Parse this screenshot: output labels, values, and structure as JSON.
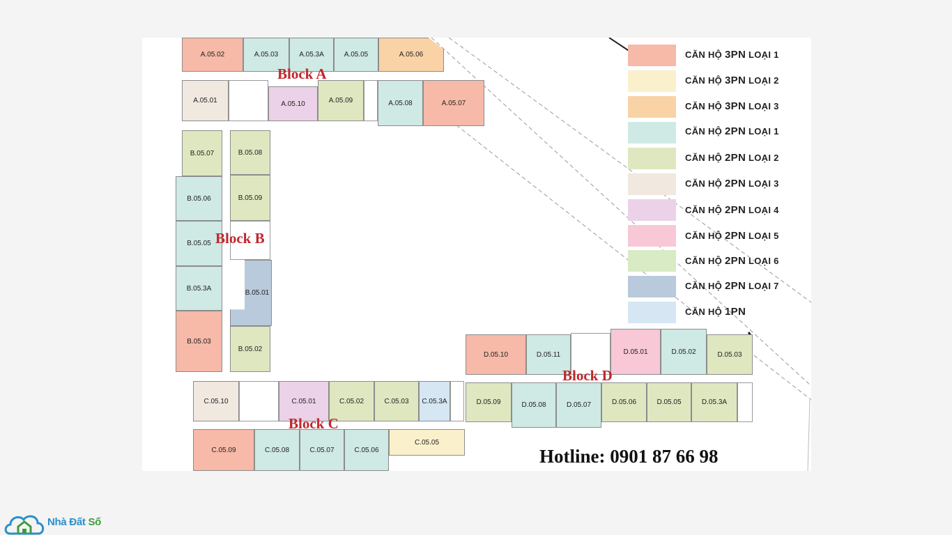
{
  "colors": {
    "3pn_loai_1": "#f7b9a8",
    "3pn_loai_2": "#fbf0cc",
    "3pn_loai_3": "#f9d2a6",
    "2pn_loai_1": "#cfe9e4",
    "2pn_loai_2": "#dfe7c0",
    "2pn_loai_3": "#f1e8e0",
    "2pn_loai_4": "#ebd2e8",
    "2pn_loai_5": "#f8c8d6",
    "2pn_loai_6": "#d8ebc4",
    "2pn_loai_7": "#b8cadb",
    "1pn": "#d6e6f3"
  },
  "blocks": {
    "a": "Block A",
    "b": "Block B",
    "c": "Block C",
    "d": "Block D"
  },
  "units": {
    "A0502": "A.05.02",
    "A0503": "A.05.03",
    "A053A": "A.05.3A",
    "A0505": "A.05.05",
    "A0506": "A.05.06",
    "A0501": "A.05.01",
    "A0510": "A.05.10",
    "A0509": "A.05.09",
    "A0508": "A.05.08",
    "A0507": "A.05.07",
    "B0507": "B.05.07",
    "B0508": "B.05.08",
    "B0506": "B.05.06",
    "B0509": "B.05.09",
    "B0505": "B.05.05",
    "B053A": "B.05.3A",
    "B0501": "B.05.01",
    "B0503": "B.05.03",
    "B0502": "B.05.02",
    "C0510": "C.05.10",
    "C0501": "C.05.01",
    "C0502": "C.05.02",
    "C0503": "C.05.03",
    "C053A": "C.05.3A",
    "C0509": "C.05.09",
    "C0508": "C.05.08",
    "C0507": "C.05.07",
    "C0506": "C.05.06",
    "C0505": "C.05.05",
    "D0510": "D.05.10",
    "D0511": "D.05.11",
    "D0501": "D.05.01",
    "D0502": "D.05.02",
    "D0503": "D.05.03",
    "D0509": "D.05.09",
    "D0508": "D.05.08",
    "D0507": "D.05.07",
    "D0506": "D.05.06",
    "D0505": "D.05.05",
    "D053A": "D.05.3A"
  },
  "legend": [
    {
      "prefix": "CĂN HỘ ",
      "type": "3PN",
      "suffix": " LOẠI 1",
      "color_key": "3pn_loai_1"
    },
    {
      "prefix": "CĂN HỘ ",
      "type": "3PN",
      "suffix": " LOẠI 2",
      "color_key": "3pn_loai_2"
    },
    {
      "prefix": "CĂN HỘ ",
      "type": "3PN",
      "suffix": " LOẠI 3",
      "color_key": "3pn_loai_3"
    },
    {
      "prefix": "CĂN HỘ ",
      "type": "2PN",
      "suffix": " LOẠI 1",
      "color_key": "2pn_loai_1"
    },
    {
      "prefix": "CĂN HỘ ",
      "type": "2PN",
      "suffix": " LOẠI 2",
      "color_key": "2pn_loai_2"
    },
    {
      "prefix": "CĂN HỘ ",
      "type": "2PN",
      "suffix": " LOẠI 3",
      "color_key": "2pn_loai_3"
    },
    {
      "prefix": "CĂN HỘ ",
      "type": "2PN",
      "suffix": " LOẠI 4",
      "color_key": "2pn_loai_4"
    },
    {
      "prefix": "CĂN HỘ ",
      "type": "2PN",
      "suffix": " LOẠI 5",
      "color_key": "2pn_loai_5"
    },
    {
      "prefix": "CĂN HỘ ",
      "type": "2PN",
      "suffix": " LOẠI 6",
      "color_key": "2pn_loai_6"
    },
    {
      "prefix": "CĂN HỘ ",
      "type": "2PN",
      "suffix": " LOẠI 7",
      "color_key": "2pn_loai_7"
    },
    {
      "prefix": "CĂN HỘ ",
      "type": "1PN",
      "suffix": "",
      "color_key": "1pn"
    }
  ],
  "hotline": "Hotline: 0901 87 66 98",
  "logo": {
    "part1": "Nhà Đất ",
    "part2": "Số"
  }
}
